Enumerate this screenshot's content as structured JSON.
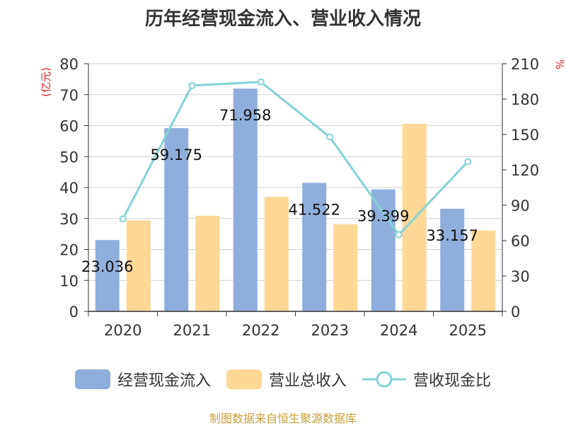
{
  "chart_data": {
    "type": "bar",
    "title": "历年经营现金流入、营业收入情况",
    "categories": [
      "2020",
      "2021",
      "2022",
      "2023",
      "2024",
      "2025"
    ],
    "y_left_label": "(亿元)",
    "y_right_label": "%",
    "y_left_ticks": [
      "0",
      "10",
      "20",
      "30",
      "40",
      "50",
      "60",
      "70",
      "80"
    ],
    "y_right_ticks": [
      "0",
      "30",
      "60",
      "90",
      "120",
      "150",
      "180",
      "210"
    ],
    "ylim_left": [
      0,
      80
    ],
    "ylim_right": [
      0,
      210
    ],
    "grid": true,
    "legend_position": "bottom",
    "series": [
      {
        "name": "经营现金流入",
        "kind": "bar",
        "axis": "left",
        "color": "#8eaedb",
        "values": [
          23.036,
          59.175,
          71.958,
          41.522,
          39.399,
          33.157
        ],
        "labels": [
          "23.036",
          "59.175",
          "71.958",
          "41.522",
          "39.399",
          "33.157"
        ]
      },
      {
        "name": "营业总收入",
        "kind": "bar",
        "axis": "left",
        "color": "#ffd895",
        "values": [
          29.4,
          30.9,
          37.0,
          28.1,
          60.6,
          26.1
        ]
      },
      {
        "name": "营收现金比",
        "kind": "line",
        "axis": "right",
        "color": "#86d3d5",
        "values": [
          78.4,
          191.5,
          194.5,
          147.8,
          65.0,
          127.0
        ]
      }
    ]
  },
  "source_text": "制图数据来自恒生聚源数据库",
  "colors": {
    "axis_label_left": "#e02020",
    "axis_label_right": "#e02020",
    "source": "#c8a03a"
  }
}
